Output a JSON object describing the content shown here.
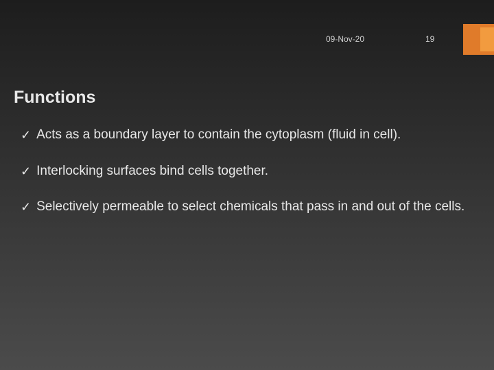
{
  "background_gradient": {
    "from": "#1d1d1d",
    "to": "#4b4b4b",
    "angle_deg": 180
  },
  "header": {
    "date": "09-Nov-20",
    "page_number": "19",
    "header_text_color": "#d0d0d0",
    "accent_color_outer": "#e07b2a",
    "accent_color_inner": "#f29b3f"
  },
  "title": {
    "text": "Functions",
    "color": "#e8e8e8"
  },
  "body_text_color": "#e8e8e8",
  "check_color": "#e8e8e8",
  "bullets": [
    {
      "text": "Acts as a boundary layer to contain the cytoplasm (fluid in cell)."
    },
    {
      "text": "Interlocking surfaces bind cells together."
    },
    {
      "text": "Selectively permeable to select chemicals that pass in and out of the cells."
    }
  ],
  "checkmark_glyph": "✓"
}
